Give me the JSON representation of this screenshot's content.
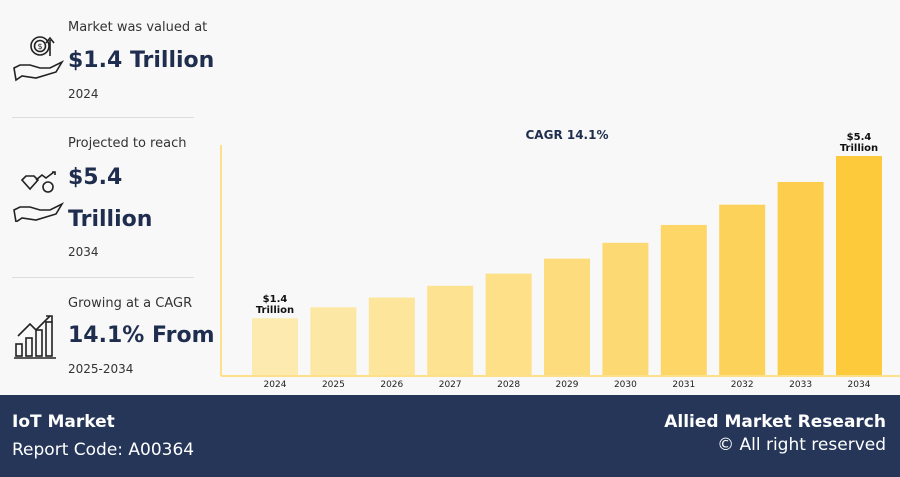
{
  "stats": [
    {
      "label": "Market was valued at",
      "value": "$1.4 Trillion",
      "year": "2024",
      "icon": "money-hand-icon"
    },
    {
      "label": "Projected to reach",
      "value_line1": "$5.4",
      "value_line2": "Trillion",
      "year": "2034",
      "icon": "diamond-hand-icon"
    },
    {
      "label": "Growing at a CAGR",
      "value": "14.1% From",
      "year": "2025-2034",
      "icon": "growth-chart-icon"
    }
  ],
  "chart_data": {
    "type": "bar",
    "title": "CAGR 14.1%",
    "categories": [
      "2024",
      "2025",
      "2026",
      "2027",
      "2028",
      "2029",
      "2030",
      "2031",
      "2032",
      "2033",
      "2034"
    ],
    "values": [
      1.4,
      1.67,
      1.91,
      2.2,
      2.5,
      2.87,
      3.26,
      3.7,
      4.2,
      4.76,
      5.4
    ],
    "unit": "Trillion USD",
    "annotations": [
      {
        "category": "2024",
        "line1": "$1.4",
        "line2": "Trillion"
      },
      {
        "category": "2034",
        "line1": "$5.4",
        "line2": "Trillion"
      }
    ],
    "colors": [
      "#fdeaaf",
      "#fde7a4",
      "#fde59b",
      "#fde292",
      "#fde088",
      "#fddc7d",
      "#fdd973",
      "#fdd667",
      "#fdd25b",
      "#fdce4d",
      "#fdca3c"
    ],
    "ylim": [
      0,
      5.4
    ]
  },
  "footer": {
    "title": "IoT Market",
    "code": "Report Code: A00364",
    "brand": "Allied Market Research",
    "rights": "© All right reserved"
  }
}
